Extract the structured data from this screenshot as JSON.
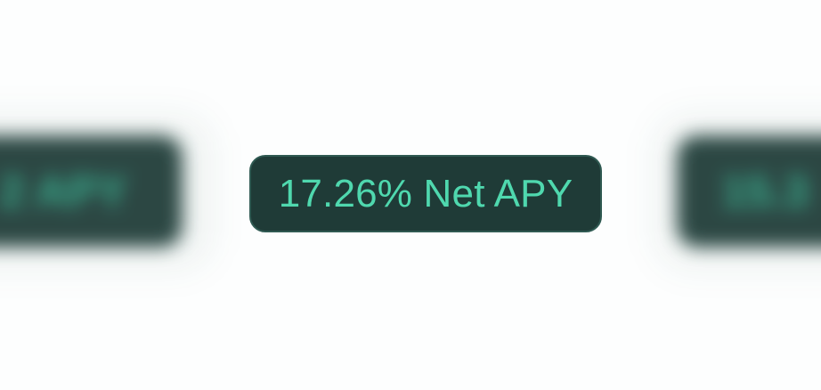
{
  "carousel": {
    "prev_item": "2 APY",
    "current_item": "17.26% Net APY",
    "next_item": "15.3"
  },
  "colors": {
    "background": "#fdfefe",
    "pill_bg": "#1f3b37",
    "pill_border": "#2f5a52",
    "accent_text": "#4fd8ae"
  }
}
